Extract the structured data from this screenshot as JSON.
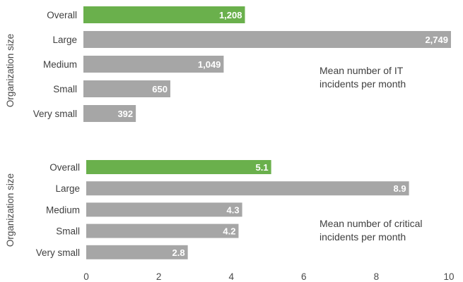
{
  "colors": {
    "highlight": "#6ab04c",
    "bar": "#a6a6a6",
    "value_label": "#ffffff"
  },
  "chart_data": [
    {
      "type": "bar",
      "orientation": "horizontal",
      "ylabel": "Organization size",
      "annotation": [
        "Mean number of IT",
        "incidents per month"
      ],
      "categories": [
        "Overall",
        "Large",
        "Medium",
        "Small",
        "Very small"
      ],
      "values": [
        1208,
        2749,
        1049,
        650,
        392
      ],
      "value_labels": [
        "1,208",
        "2,749",
        "1,049",
        "650",
        "392"
      ],
      "xlim": [
        0,
        2749
      ],
      "highlight_index": 0
    },
    {
      "type": "bar",
      "orientation": "horizontal",
      "ylabel": "Organization size",
      "annotation": [
        "Mean number of critical",
        "incidents per month"
      ],
      "categories": [
        "Overall",
        "Large",
        "Medium",
        "Small",
        "Very small"
      ],
      "values": [
        5.1,
        8.9,
        4.3,
        4.2,
        2.8
      ],
      "value_labels": [
        "5.1",
        "8.9",
        "4.3",
        "4.2",
        "2.8"
      ],
      "xlim": [
        0,
        10
      ],
      "xticks": [
        "0",
        "2",
        "4",
        "6",
        "8",
        "10"
      ],
      "highlight_index": 0
    }
  ]
}
